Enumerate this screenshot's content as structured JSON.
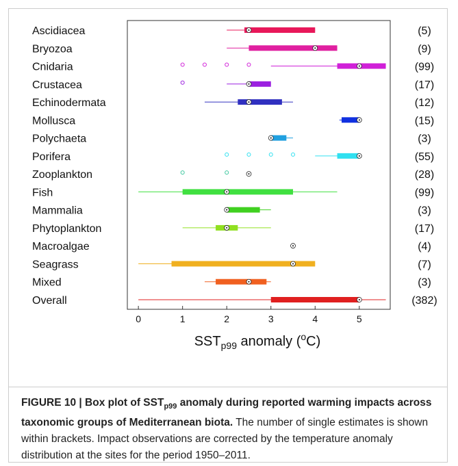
{
  "chart_data": {
    "type": "box",
    "orientation": "horizontal",
    "xlim": [
      -0.25,
      5.7
    ],
    "xticks": [
      0,
      1,
      2,
      3,
      4,
      5
    ],
    "x_label": [
      "SST",
      "p99",
      " anomaly (",
      "o",
      "C)"
    ],
    "series": [
      {
        "name": "Ascidiacea",
        "color": "#e8185a",
        "whislo": 2,
        "q1": 2.4,
        "med": 2.5,
        "q3": 4,
        "whishi": 4,
        "fliers": [],
        "n_label": "(5)"
      },
      {
        "name": "Bryozoa",
        "color": "#e020a0",
        "whislo": 2,
        "q1": 2.5,
        "med": 4,
        "q3": 4.5,
        "whishi": 4.5,
        "fliers": [],
        "n_label": "(9)"
      },
      {
        "name": "Cnidaria",
        "color": "#d020d8",
        "whislo": 3,
        "q1": 4.5,
        "med": 5,
        "q3": 5.6,
        "whishi": 5.6,
        "fliers": [
          1,
          1.5,
          2,
          2.5
        ],
        "n_label": "(99)"
      },
      {
        "name": "Crustacea",
        "color": "#9b20e0",
        "whislo": 2,
        "q1": 2.5,
        "med": 2.5,
        "q3": 3,
        "whishi": 3,
        "fliers": [
          1
        ],
        "n_label": "(17)"
      },
      {
        "name": "Echinodermata",
        "color": "#3030c0",
        "whislo": 1.5,
        "q1": 2.25,
        "med": 2.5,
        "q3": 3.25,
        "whishi": 3.5,
        "fliers": [],
        "n_label": "(12)"
      },
      {
        "name": "Mollusca",
        "color": "#1030e0",
        "whislo": 4.55,
        "q1": 4.6,
        "med": 5,
        "q3": 5,
        "whishi": 5.05,
        "fliers": [],
        "n_label": "(15)"
      },
      {
        "name": "Polychaeta",
        "color": "#20a0e0",
        "whislo": 3,
        "q1": 3,
        "med": 3,
        "q3": 3.35,
        "whishi": 3.5,
        "fliers": [],
        "n_label": "(3)"
      },
      {
        "name": "Porifera",
        "color": "#30e0f0",
        "whislo": 4,
        "q1": 4.5,
        "med": 5,
        "q3": 5,
        "whishi": 5,
        "fliers": [
          2,
          2.5,
          3,
          3.5
        ],
        "n_label": "(55)"
      },
      {
        "name": "Zooplankton",
        "color": "#40c8a0",
        "whislo": 2.5,
        "q1": 2.5,
        "med": 2.5,
        "q3": 2.5,
        "whishi": 2.5,
        "fliers": [
          1,
          2
        ],
        "n_label": "(28)"
      },
      {
        "name": "Fish",
        "color": "#40e040",
        "whislo": 0,
        "q1": 1,
        "med": 2,
        "q3": 3.5,
        "whishi": 4.5,
        "fliers": [],
        "n_label": "(99)"
      },
      {
        "name": "Mammalia",
        "color": "#40d020",
        "whislo": 2,
        "q1": 2,
        "med": 2,
        "q3": 2.75,
        "whishi": 3,
        "fliers": [],
        "n_label": "(3)"
      },
      {
        "name": "Phytoplankton",
        "color": "#90e020",
        "whislo": 1,
        "q1": 1.75,
        "med": 2,
        "q3": 2.25,
        "whishi": 3,
        "fliers": [],
        "n_label": "(17)"
      },
      {
        "name": "Macroalgae",
        "color": "#e0e020",
        "whislo": 3.5,
        "q1": 3.5,
        "med": 3.5,
        "q3": 3.5,
        "whishi": 3.5,
        "fliers": [],
        "n_label": "(4)"
      },
      {
        "name": "Seagrass",
        "color": "#f0b020",
        "whislo": 0,
        "q1": 0.75,
        "med": 3.5,
        "q3": 4,
        "whishi": 4,
        "fliers": [],
        "n_label": "(7)"
      },
      {
        "name": "Mixed",
        "color": "#f06020",
        "whislo": 1.5,
        "q1": 1.75,
        "med": 2.5,
        "q3": 2.9,
        "whishi": 3,
        "fliers": [],
        "n_label": "(3)"
      },
      {
        "name": "Overall",
        "color": "#e02020",
        "whislo": 0,
        "q1": 3,
        "med": 5,
        "q3": 5,
        "whishi": 5.6,
        "fliers": [],
        "n_label": "(382)"
      }
    ]
  },
  "caption": {
    "bold": [
      "FIGURE 10 | Box plot of SST",
      "p99",
      " anomaly during reported warming impacts across taxonomic groups of Mediterranean biota."
    ],
    "text": " The number of single estimates is shown within brackets. Impact observations are corrected by the temperature anomaly distribution at the sites for the period 1950–2011."
  }
}
